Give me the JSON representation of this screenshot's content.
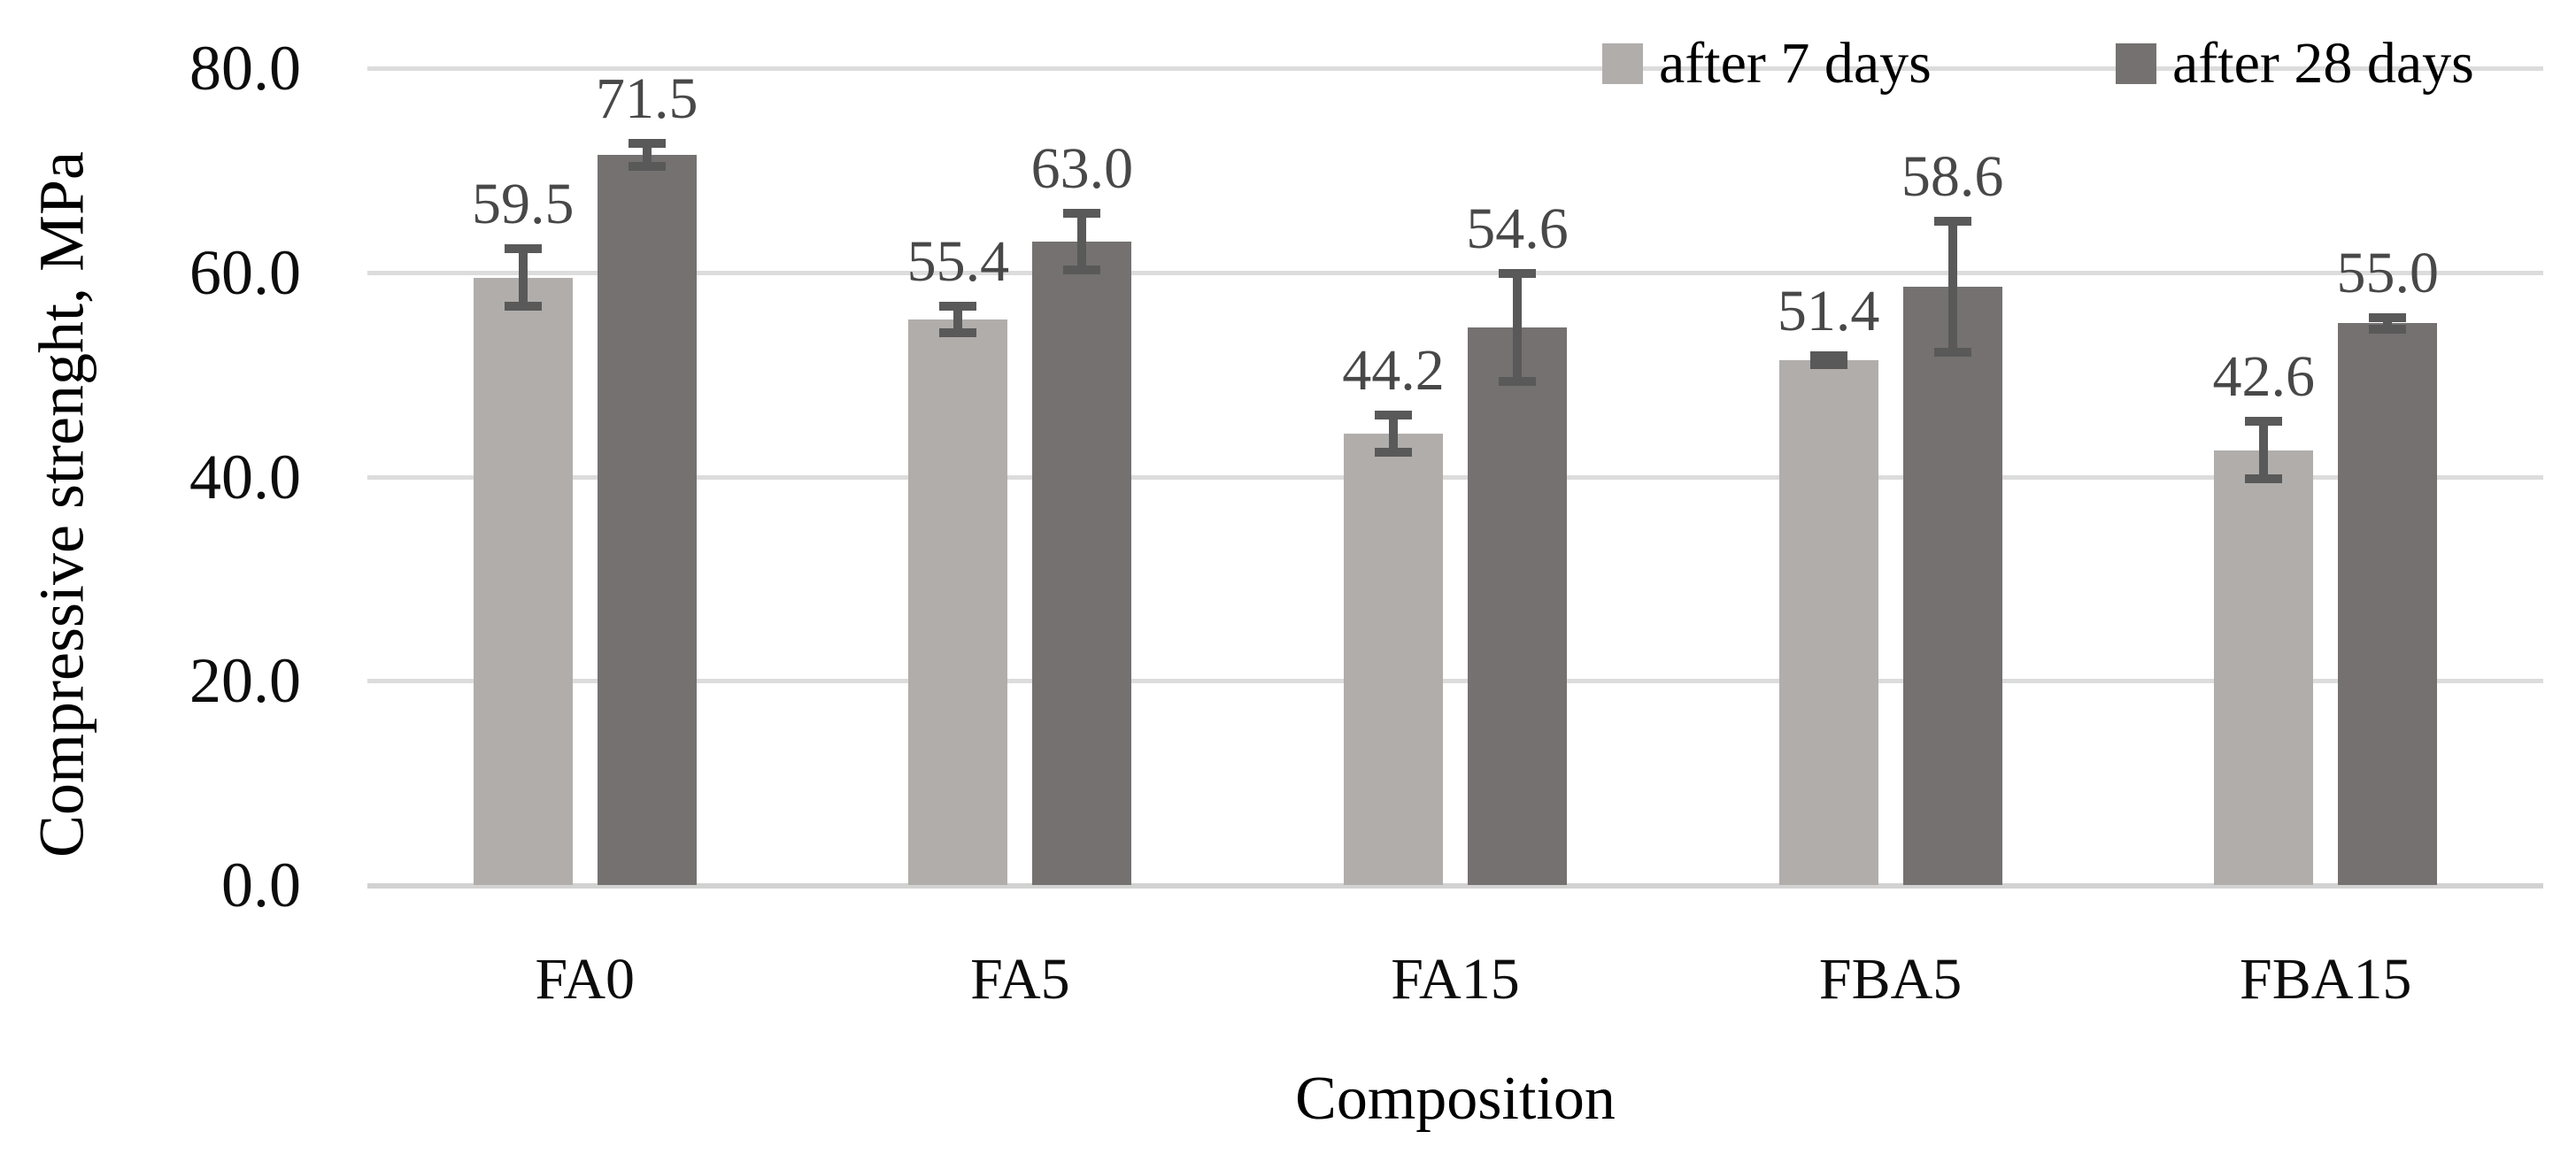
{
  "chart_data": {
    "type": "bar",
    "title": "",
    "xlabel": "Composition",
    "ylabel": "Compressive strenght, MPa",
    "ylim": [
      0,
      80
    ],
    "yticks": [
      0,
      20,
      40,
      60,
      80
    ],
    "ytick_labels": [
      "0.0",
      "20.0",
      "40.0",
      "60.0",
      "80.0"
    ],
    "categories": [
      "FA0",
      "FA5",
      "FA15",
      "FBA5",
      "FBA15"
    ],
    "series": [
      {
        "name": "after 7 days",
        "color": "#b0adab",
        "values": [
          59.5,
          55.4,
          44.2,
          51.4,
          42.6
        ],
        "errors_plus_minus": [
          2.8,
          1.3,
          1.8,
          0.4,
          2.8
        ]
      },
      {
        "name": "after 28 days",
        "color": "#757171",
        "values": [
          71.5,
          63.0,
          54.6,
          58.6,
          55.0
        ],
        "errors_plus_minus": [
          1.1,
          2.8,
          5.3,
          6.4,
          0.6
        ]
      }
    ],
    "data_labels": [
      "59.5",
      "71.5",
      "55.4",
      "63.0",
      "44.2",
      "54.6",
      "51.4",
      "58.6",
      "42.6",
      "55.0"
    ],
    "legend_position": "top-right",
    "grid": true,
    "colors": {
      "gridline": "#dcdcdc",
      "baseline": "#d2d2d2",
      "error_bar": "#595959",
      "data_label": "#484848",
      "axis_text": "#0d0d0d"
    }
  }
}
